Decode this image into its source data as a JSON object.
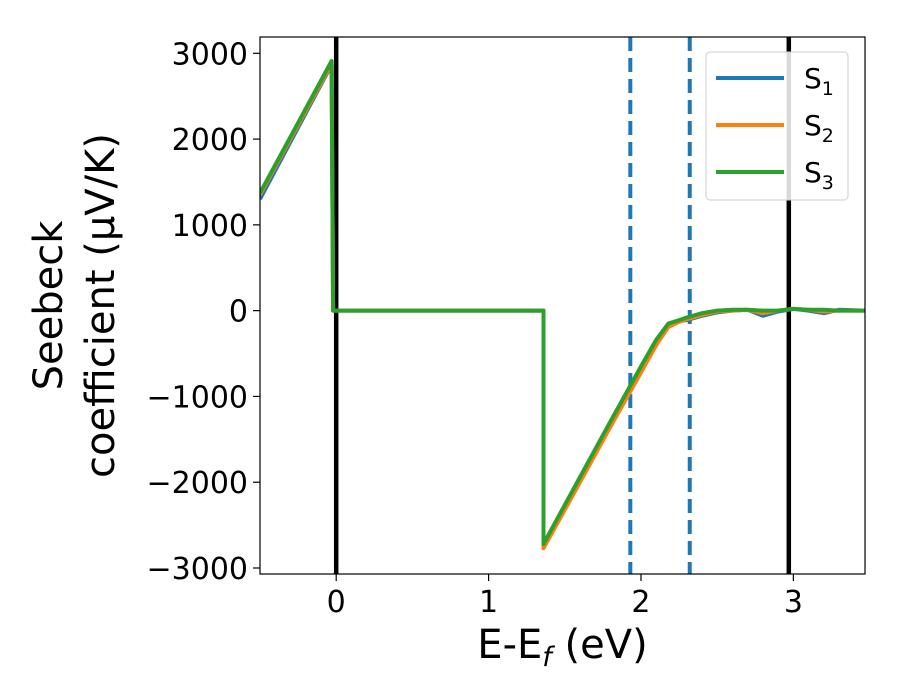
{
  "chart_data": {
    "type": "line",
    "xlabel": "E-E_f (eV)",
    "ylabel": "Seebeck coefficient (μV/K)",
    "xlim": [
      -0.5,
      3.47
    ],
    "ylim": [
      -3070,
      3190
    ],
    "grid": false,
    "legend_position": "top-right",
    "x_ticks": [
      {
        "value": 0,
        "label": "0"
      },
      {
        "value": 1,
        "label": "1"
      },
      {
        "value": 2,
        "label": "2"
      },
      {
        "value": 3,
        "label": "3"
      }
    ],
    "y_ticks": [
      {
        "value": 3000,
        "label": "3000"
      },
      {
        "value": 2000,
        "label": "2000"
      },
      {
        "value": 1000,
        "label": "1000"
      },
      {
        "value": 0,
        "label": "0"
      },
      {
        "value": -1000,
        "label": "−1000"
      },
      {
        "value": -2000,
        "label": "−2000"
      },
      {
        "value": -3000,
        "label": "−3000"
      }
    ],
    "vertical_lines": [
      {
        "x": 0.0,
        "style": "solid",
        "color": "#000000"
      },
      {
        "x": 2.97,
        "style": "solid",
        "color": "#000000"
      },
      {
        "x": 1.93,
        "style": "dashed",
        "color": "#1f77b4"
      },
      {
        "x": 2.32,
        "style": "dashed",
        "color": "#1f77b4"
      }
    ],
    "series": [
      {
        "name": "S1",
        "color": "#1f77b4",
        "points": [
          [
            -0.5,
            1300
          ],
          [
            -0.03,
            2870
          ],
          [
            -0.02,
            0
          ],
          [
            1.36,
            0
          ],
          [
            1.36,
            -2740
          ],
          [
            1.6,
            -1960
          ],
          [
            1.8,
            -1310
          ],
          [
            2.0,
            -680
          ],
          [
            2.1,
            -370
          ],
          [
            2.18,
            -170
          ],
          [
            2.25,
            -120
          ],
          [
            2.3,
            -110
          ],
          [
            2.4,
            -60
          ],
          [
            2.5,
            -20
          ],
          [
            2.6,
            0
          ],
          [
            2.7,
            10
          ],
          [
            2.8,
            -60
          ],
          [
            2.9,
            -10
          ],
          [
            3.0,
            20
          ],
          [
            3.1,
            0
          ],
          [
            3.2,
            -30
          ],
          [
            3.3,
            10
          ],
          [
            3.47,
            0
          ]
        ]
      },
      {
        "name": "S2",
        "color": "#ff7f0e",
        "points": [
          [
            -0.5,
            1350
          ],
          [
            -0.03,
            2880
          ],
          [
            -0.02,
            0
          ],
          [
            1.36,
            0
          ],
          [
            1.36,
            -2770
          ],
          [
            1.6,
            -2000
          ],
          [
            1.8,
            -1350
          ],
          [
            2.0,
            -720
          ],
          [
            2.1,
            -400
          ],
          [
            2.18,
            -190
          ],
          [
            2.25,
            -130
          ],
          [
            2.3,
            -100
          ],
          [
            2.4,
            -50
          ],
          [
            2.5,
            -10
          ],
          [
            2.6,
            0
          ],
          [
            2.7,
            10
          ],
          [
            2.8,
            -30
          ],
          [
            2.9,
            0
          ],
          [
            3.0,
            20
          ],
          [
            3.1,
            10
          ],
          [
            3.2,
            -10
          ],
          [
            3.3,
            0
          ],
          [
            3.47,
            0
          ]
        ]
      },
      {
        "name": "S3",
        "color": "#2ca02c",
        "points": [
          [
            -0.5,
            1370
          ],
          [
            -0.03,
            2910
          ],
          [
            -0.02,
            0
          ],
          [
            1.36,
            0
          ],
          [
            1.36,
            -2720
          ],
          [
            1.6,
            -1940
          ],
          [
            1.8,
            -1290
          ],
          [
            2.0,
            -650
          ],
          [
            2.1,
            -340
          ],
          [
            2.18,
            -150
          ],
          [
            2.25,
            -110
          ],
          [
            2.3,
            -80
          ],
          [
            2.4,
            -30
          ],
          [
            2.5,
            0
          ],
          [
            2.6,
            10
          ],
          [
            2.7,
            10
          ],
          [
            2.8,
            0
          ],
          [
            2.9,
            0
          ],
          [
            3.0,
            20
          ],
          [
            3.1,
            10
          ],
          [
            3.2,
            10
          ],
          [
            3.3,
            0
          ],
          [
            3.47,
            0
          ]
        ]
      }
    ]
  }
}
